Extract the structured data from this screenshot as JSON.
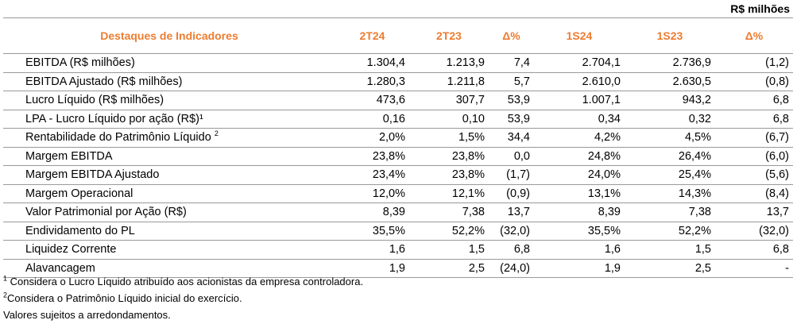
{
  "unit_label": "R$ milhões",
  "header": {
    "indicator": "Destaques de Indicadores",
    "cols": [
      "2T24",
      "2T23",
      "Δ%",
      "1S24",
      "1S23",
      "Δ%"
    ]
  },
  "rows": [
    {
      "label": "EBITDA  (R$ milhões)",
      "sup": "",
      "v": [
        "1.304,4",
        "1.213,9",
        "7,4",
        "2.704,1",
        "2.736,9",
        "(1,2)"
      ]
    },
    {
      "label": "EBITDA  Ajustado (R$ milhões)",
      "sup": "",
      "v": [
        "1.280,3",
        "1.211,8",
        "5,7",
        "2.610,0",
        "2.630,5",
        "(0,8)"
      ]
    },
    {
      "label": "Lucro Líquido (R$ milhões)",
      "sup": "",
      "v": [
        "473,6",
        "307,7",
        "53,9",
        "1.007,1",
        "943,2",
        "6,8"
      ]
    },
    {
      "label": "LPA - Lucro Líquido por ação (R$)¹",
      "sup": "",
      "v": [
        "0,16",
        "0,10",
        "53,9",
        "0,34",
        "0,32",
        "6,8"
      ]
    },
    {
      "label": "Rentabilidade do Patrimônio Líquido ",
      "sup": "2",
      "v": [
        "2,0%",
        "1,5%",
        "34,4",
        "4,2%",
        "4,5%",
        "(6,7)"
      ]
    },
    {
      "label": "Margem EBITDA",
      "sup": "",
      "v": [
        "23,8%",
        "23,8%",
        "0,0",
        "24,8%",
        "26,4%",
        "(6,0)"
      ]
    },
    {
      "label": "Margem EBITDA Ajustado",
      "sup": "",
      "v": [
        "23,4%",
        "23,8%",
        "(1,7)",
        "24,0%",
        "25,4%",
        "(5,6)"
      ]
    },
    {
      "label": "Margem Operacional",
      "sup": "",
      "v": [
        "12,0%",
        "12,1%",
        "(0,9)",
        "13,1%",
        "14,3%",
        "(8,4)"
      ]
    },
    {
      "label": "Valor Patrimonial por Ação (R$)",
      "sup": "",
      "v": [
        "8,39",
        "7,38",
        "13,7",
        "8,39",
        "7,38",
        "13,7"
      ]
    },
    {
      "label": "Endividamento do PL",
      "sup": "",
      "v": [
        "35,5%",
        "52,2%",
        "(32,0)",
        "35,5%",
        "52,2%",
        "(32,0)"
      ]
    },
    {
      "label": "Liquidez Corrente",
      "sup": "",
      "v": [
        "1,6",
        "1,5",
        "6,8",
        "1,6",
        "1,5",
        "6,8"
      ]
    },
    {
      "label": "Alavancagem",
      "sup": "",
      "v": [
        "1,9",
        "2,5",
        "(24,0)",
        "1,9",
        "2,5",
        "-"
      ]
    }
  ],
  "footnotes": {
    "n1_mark": "1",
    "n1_text": " Considera o Lucro Líquido atribuído aos acionistas da empresa controladora.",
    "n2_mark": "2",
    "n2_text": "Considera o Patrimônio Líquido inicial do exercício.",
    "n3_text": "Valores sujeitos a arredondamentos."
  }
}
